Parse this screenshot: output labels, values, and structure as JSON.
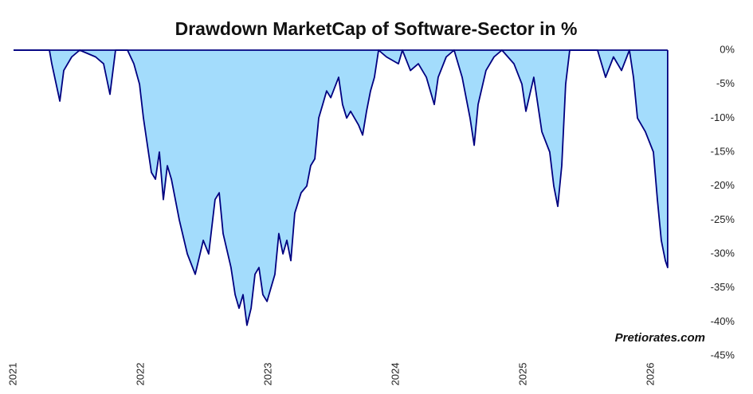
{
  "chart_data": {
    "type": "area",
    "title": "Drawdown MarketCap of Software-Sector in %",
    "annotation": "Pretiorates.com",
    "color": "#000080",
    "fill_color": "#a3dcfc",
    "x": [
      2021.0,
      2021.281,
      2021.3,
      2021.363,
      2021.394,
      2021.456,
      2021.519,
      2021.644,
      2021.706,
      2021.756,
      2021.8,
      2021.894,
      2021.944,
      2021.988,
      2022.019,
      2022.05,
      2022.081,
      2022.113,
      2022.144,
      2022.175,
      2022.206,
      2022.238,
      2022.3,
      2022.363,
      2022.425,
      2022.488,
      2022.531,
      2022.581,
      2022.613,
      2022.644,
      2022.706,
      2022.738,
      2022.769,
      2022.8,
      2022.831,
      2022.863,
      2022.894,
      2022.925,
      2022.956,
      2022.988,
      2023.019,
      2023.05,
      2023.081,
      2023.113,
      2023.144,
      2023.175,
      2023.206,
      2023.256,
      2023.3,
      2023.331,
      2023.363,
      2023.394,
      2023.425,
      2023.456,
      2023.488,
      2023.55,
      2023.581,
      2023.613,
      2023.644,
      2023.706,
      2023.738,
      2023.769,
      2023.8,
      2023.831,
      2023.863,
      2023.925,
      2024.019,
      2024.05,
      2024.113,
      2024.175,
      2024.238,
      2024.3,
      2024.331,
      2024.394,
      2024.456,
      2024.519,
      2024.581,
      2024.613,
      2024.644,
      2024.706,
      2024.769,
      2024.831,
      2024.925,
      2024.988,
      2025.019,
      2025.081,
      2025.144,
      2025.206,
      2025.238,
      2025.269,
      2025.3,
      2025.331,
      2025.363,
      2025.456,
      2025.581,
      2025.644,
      2025.706,
      2025.769,
      2025.831,
      2025.863,
      2025.894,
      2025.956,
      2026.019,
      2026.05,
      2026.081,
      2026.113,
      2026.131
    ],
    "values": [
      0,
      0,
      -2,
      -7.5,
      -3,
      -1,
      0,
      -1,
      -2,
      -6.5,
      0,
      0,
      -2,
      -5,
      -10,
      -14,
      -18,
      -19,
      -15,
      -22,
      -17,
      -19,
      -25,
      -30,
      -33,
      -28,
      -30,
      -22,
      -21,
      -27,
      -32,
      -36,
      -38,
      -36,
      -40.5,
      -38,
      -33,
      -32,
      -36,
      -37,
      -35,
      -33,
      -27,
      -30,
      -28,
      -31,
      -24,
      -21,
      -20,
      -17,
      -16,
      -10,
      -8,
      -6,
      -7,
      -4,
      -8,
      -10,
      -9,
      -11,
      -12.5,
      -9,
      -6,
      -4,
      0,
      -1,
      -2,
      0,
      -3,
      -2,
      -4,
      -8,
      -4,
      -1,
      0,
      -4,
      -10,
      -14,
      -8,
      -3,
      -1,
      0,
      -2,
      -5,
      -9,
      -4,
      -12,
      -15,
      -20,
      -23,
      -17,
      -5,
      0,
      0,
      0,
      -4,
      -1,
      -3,
      0,
      -4,
      -10,
      -12,
      -15,
      -22,
      -28,
      -31,
      -32
    ],
    "xlim": [
      2021,
      2026.144
    ],
    "xticks": [
      2021,
      2022,
      2023,
      2024,
      2025,
      2026
    ],
    "ylim": [
      -45,
      0
    ],
    "yticks": [
      {
        "value": 0,
        "label": "0%"
      },
      {
        "value": -5,
        "label": "-5%"
      },
      {
        "value": -10,
        "label": "-10%"
      },
      {
        "value": -15,
        "label": "-15%"
      },
      {
        "value": -20,
        "label": "-20%"
      },
      {
        "value": -25,
        "label": "-25%"
      },
      {
        "value": -30,
        "label": "-30%"
      },
      {
        "value": -35,
        "label": "-35%"
      },
      {
        "value": -40,
        "label": "-40%"
      },
      {
        "value": -45,
        "label": "-45%"
      }
    ],
    "y_axis_side": "right",
    "grid": false
  }
}
